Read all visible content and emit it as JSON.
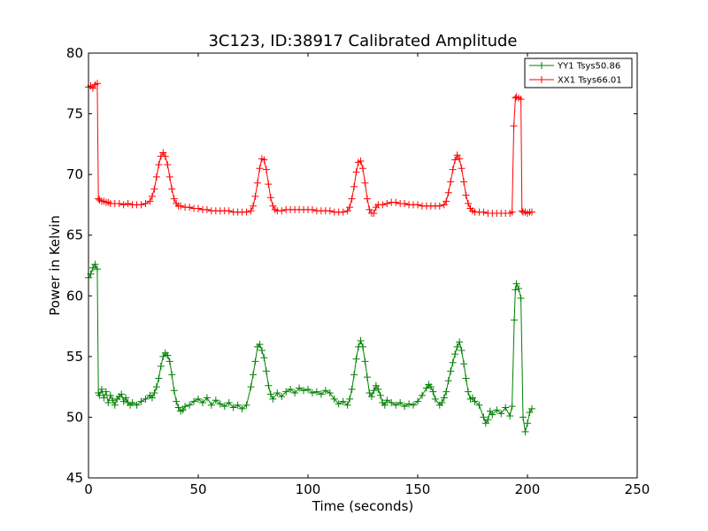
{
  "chart_data": {
    "type": "line",
    "title": "3C123, ID:38917 Calibrated Amplitude",
    "xlabel": "Time (seconds)",
    "ylabel": "Power in Kelvin",
    "xlim": [
      0,
      250
    ],
    "ylim": [
      45,
      80
    ],
    "xticks": [
      0,
      50,
      100,
      150,
      200,
      250
    ],
    "yticks": [
      45,
      50,
      55,
      60,
      65,
      70,
      75,
      80
    ],
    "grid": false,
    "legend_position": "top-right",
    "marker": "plus",
    "series": [
      {
        "name": "YY1 Tsys50.86",
        "color": "#008000",
        "x": [
          0,
          1,
          2,
          3,
          4,
          4.5,
          5,
          6,
          7,
          8,
          9,
          10,
          11,
          12,
          13,
          14,
          15,
          16,
          17,
          18,
          19,
          20,
          22,
          24,
          26,
          28,
          29,
          30,
          31,
          32,
          33,
          34,
          35,
          36,
          37,
          38,
          39,
          40,
          41,
          42,
          43,
          44,
          46,
          48,
          50,
          52,
          54,
          56,
          58,
          60,
          62,
          64,
          66,
          68,
          70,
          72,
          74,
          75,
          76,
          77,
          78,
          79,
          80,
          81,
          82,
          83,
          84,
          86,
          88,
          90,
          92,
          94,
          96,
          98,
          100,
          102,
          104,
          106,
          108,
          110,
          112,
          114,
          116,
          118,
          119,
          120,
          121,
          122,
          123,
          124,
          125,
          126,
          127,
          128,
          129,
          130,
          131,
          132,
          133,
          134,
          135,
          136,
          138,
          140,
          142,
          144,
          146,
          148,
          150,
          152,
          154,
          155,
          156,
          157,
          158,
          160,
          161,
          162,
          163,
          164,
          165,
          166,
          167,
          168,
          169,
          170,
          171,
          172,
          173,
          174,
          175,
          176,
          178,
          180,
          181,
          182,
          183,
          184,
          186,
          188,
          190,
          192,
          193,
          194,
          194.5,
          195,
          196,
          197,
          198,
          199,
          200,
          201,
          202
        ],
        "y": [
          61.5,
          61.8,
          62.3,
          62.6,
          62.2,
          52.0,
          51.8,
          52.3,
          51.6,
          52.1,
          51.2,
          51.8,
          51.4,
          51.0,
          51.5,
          51.7,
          51.9,
          51.3,
          51.6,
          51.2,
          51.0,
          51.2,
          51.0,
          51.3,
          51.5,
          51.8,
          51.6,
          52.0,
          52.5,
          53.2,
          54.2,
          55.0,
          55.3,
          55.1,
          54.6,
          53.5,
          52.2,
          51.3,
          50.8,
          50.5,
          50.6,
          50.9,
          51.0,
          51.3,
          51.5,
          51.2,
          51.6,
          51.0,
          51.4,
          51.1,
          50.9,
          51.2,
          50.8,
          51.0,
          50.7,
          51.0,
          52.5,
          53.5,
          54.6,
          55.8,
          56.0,
          55.5,
          54.9,
          53.8,
          52.6,
          51.9,
          51.5,
          52.0,
          51.7,
          52.1,
          52.3,
          52.0,
          52.4,
          52.2,
          52.3,
          52.0,
          52.1,
          51.9,
          52.2,
          52.0,
          51.5,
          51.1,
          51.3,
          51.0,
          51.5,
          52.3,
          53.5,
          54.8,
          55.8,
          56.3,
          55.8,
          54.6,
          53.3,
          52.0,
          51.7,
          52.2,
          52.6,
          52.3,
          51.8,
          51.2,
          51.0,
          51.4,
          51.2,
          51.0,
          51.2,
          50.9,
          51.1,
          51.0,
          51.3,
          51.8,
          52.4,
          52.7,
          52.5,
          52.1,
          51.5,
          51.0,
          51.2,
          51.6,
          52.1,
          53.0,
          53.8,
          54.5,
          55.2,
          55.8,
          56.2,
          55.5,
          54.4,
          53.2,
          52.1,
          51.5,
          51.6,
          51.3,
          51.0,
          50.0,
          49.5,
          49.8,
          50.5,
          50.2,
          50.6,
          50.3,
          50.8,
          50.1,
          50.9,
          58.0,
          60.5,
          61.0,
          60.6,
          59.8,
          50.0,
          48.8,
          49.5,
          50.4,
          50.7
        ]
      },
      {
        "name": "XX1 Tsys66.01",
        "color": "#ff0000",
        "x": [
          0,
          1,
          2,
          3,
          4,
          4.5,
          5,
          6,
          7,
          8,
          9,
          10,
          12,
          14,
          16,
          18,
          20,
          22,
          24,
          26,
          28,
          29,
          30,
          31,
          32,
          33,
          34,
          35,
          36,
          37,
          38,
          39,
          40,
          41,
          42,
          44,
          46,
          48,
          50,
          52,
          54,
          56,
          58,
          60,
          62,
          64,
          66,
          68,
          70,
          72,
          74,
          75,
          76,
          77,
          78,
          79,
          80,
          81,
          82,
          83,
          84,
          85,
          86,
          88,
          90,
          92,
          94,
          96,
          98,
          100,
          102,
          104,
          106,
          108,
          110,
          112,
          114,
          116,
          118,
          119,
          120,
          121,
          122,
          123,
          124,
          125,
          126,
          127,
          128,
          129,
          130,
          131,
          132,
          134,
          136,
          138,
          140,
          142,
          144,
          146,
          148,
          150,
          152,
          154,
          156,
          158,
          160,
          162,
          163,
          164,
          165,
          166,
          167,
          168,
          169,
          170,
          171,
          172,
          173,
          174,
          175,
          176,
          178,
          180,
          182,
          184,
          186,
          188,
          190,
          192,
          193,
          193.8,
          194.5,
          195,
          196,
          197,
          197.5,
          198,
          199,
          200,
          201,
          202
        ],
        "y": [
          77.2,
          77.3,
          77.1,
          77.4,
          77.5,
          68.0,
          67.9,
          67.8,
          67.8,
          67.7,
          67.7,
          67.6,
          67.6,
          67.6,
          67.5,
          67.6,
          67.5,
          67.5,
          67.5,
          67.6,
          67.8,
          68.2,
          68.8,
          69.8,
          70.8,
          71.5,
          71.8,
          71.5,
          70.8,
          69.8,
          68.8,
          68.0,
          67.6,
          67.4,
          67.4,
          67.3,
          67.3,
          67.2,
          67.2,
          67.1,
          67.1,
          67.0,
          67.0,
          67.0,
          67.0,
          67.0,
          66.9,
          66.9,
          66.9,
          66.9,
          67.0,
          67.4,
          68.2,
          69.3,
          70.5,
          71.3,
          71.2,
          70.4,
          69.2,
          68.1,
          67.4,
          67.1,
          67.0,
          67.0,
          67.1,
          67.1,
          67.1,
          67.1,
          67.1,
          67.1,
          67.1,
          67.0,
          67.0,
          67.0,
          67.0,
          66.9,
          66.9,
          66.9,
          67.0,
          67.3,
          68.0,
          69.0,
          70.2,
          71.0,
          71.1,
          70.5,
          69.3,
          68.0,
          67.1,
          66.8,
          66.8,
          67.3,
          67.5,
          67.5,
          67.6,
          67.7,
          67.7,
          67.6,
          67.6,
          67.5,
          67.5,
          67.5,
          67.4,
          67.4,
          67.4,
          67.4,
          67.4,
          67.5,
          67.8,
          68.5,
          69.4,
          70.4,
          71.2,
          71.6,
          71.3,
          70.5,
          69.4,
          68.3,
          67.6,
          67.2,
          67.0,
          66.9,
          66.9,
          66.9,
          66.8,
          66.8,
          66.8,
          66.8,
          66.8,
          66.8,
          66.9,
          74.0,
          76.3,
          76.4,
          76.3,
          76.2,
          67.0,
          66.9,
          66.9,
          66.8,
          66.9,
          66.9
        ]
      }
    ]
  }
}
